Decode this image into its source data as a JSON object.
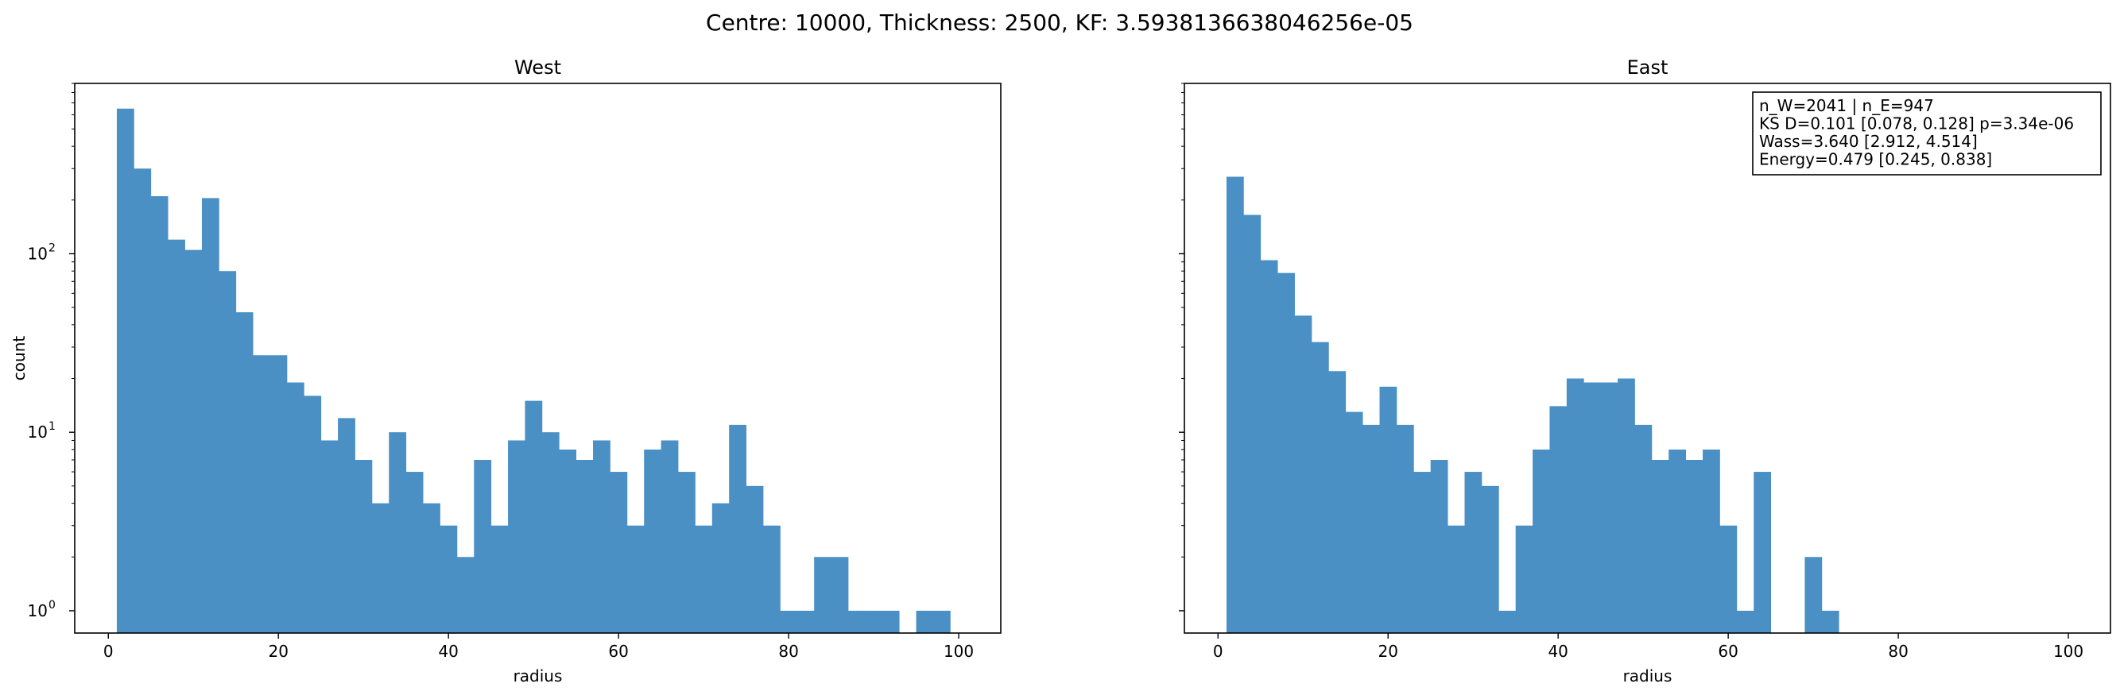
{
  "figure": {
    "suptitle": "Centre: 10000, Thickness: 2500, KF: 3.5938136638046256e-05"
  },
  "chart_data": [
    {
      "type": "histogram",
      "title": "West",
      "xlabel": "radius",
      "ylabel": "count",
      "yscale": "log",
      "xlim": [
        -3.95,
        104.95
      ],
      "ylim": [
        0.75,
        900
      ],
      "x_ticks": [
        0,
        20,
        40,
        60,
        80,
        100
      ],
      "x_tick_labels": [
        "0",
        "20",
        "40",
        "60",
        "80",
        "100"
      ],
      "y_ticks": [
        1,
        10,
        100
      ],
      "y_tick_labels": [
        "10",
        "10",
        "10"
      ],
      "y_tick_exponents": [
        "0",
        "1",
        "2"
      ],
      "bin_edges": [
        1.0,
        3.0,
        5.0,
        7.0,
        9.0,
        11.0,
        13.0,
        15.0,
        17.0,
        19.0,
        21.0,
        23.0,
        25.0,
        27.0,
        29.0,
        31.0,
        33.0,
        35.0,
        37.0,
        39.0,
        41.0,
        43.0,
        45.0,
        47.0,
        49.0,
        51.0,
        53.0,
        55.0,
        57.0,
        59.0,
        61.0,
        63.0,
        65.0,
        67.0,
        69.0,
        71.0,
        73.0,
        75.0,
        77.0,
        79.0,
        81.0,
        83.0,
        85.0,
        87.0,
        89.0,
        91.0,
        93.0,
        95.0,
        97.0,
        99.0,
        101.0
      ],
      "counts": [
        650,
        300,
        210,
        120,
        105,
        205,
        80,
        47,
        27,
        27,
        19,
        16,
        9,
        12,
        7,
        4,
        10,
        6,
        4,
        3,
        2,
        7,
        3,
        9,
        15,
        10,
        8,
        7,
        9,
        6,
        3,
        8,
        9,
        6,
        3,
        4,
        11,
        5,
        3,
        1,
        1,
        2,
        2,
        1,
        1,
        1,
        0,
        1,
        1,
        0
      ],
      "color": "#4a90c4",
      "grid": false
    },
    {
      "type": "histogram",
      "title": "East",
      "xlabel": "radius",
      "ylabel": "",
      "yscale": "log",
      "xlim": [
        -3.95,
        104.95
      ],
      "ylim": [
        0.75,
        900
      ],
      "x_ticks": [
        0,
        20,
        40,
        60,
        80,
        100
      ],
      "x_tick_labels": [
        "0",
        "20",
        "40",
        "60",
        "80",
        "100"
      ],
      "y_tick_labels_visible": false,
      "bin_edges": [
        1.0,
        3.0,
        5.0,
        7.0,
        9.0,
        11.0,
        13.0,
        15.0,
        17.0,
        19.0,
        21.0,
        23.0,
        25.0,
        27.0,
        29.0,
        31.0,
        33.0,
        35.0,
        37.0,
        39.0,
        41.0,
        43.0,
        45.0,
        47.0,
        49.0,
        51.0,
        53.0,
        55.0,
        57.0,
        59.0,
        61.0,
        63.0,
        65.0,
        67.0,
        69.0,
        71.0,
        73.0,
        75.0,
        77.0,
        79.0,
        81.0,
        83.0,
        85.0,
        87.0,
        89.0,
        91.0,
        93.0,
        95.0,
        97.0,
        99.0,
        101.0
      ],
      "counts": [
        270,
        165,
        92,
        78,
        45,
        32,
        22,
        13,
        11,
        18,
        11,
        6,
        7,
        3,
        6,
        5,
        1,
        3,
        8,
        14,
        20,
        19,
        19,
        20,
        11,
        7,
        8,
        7,
        8,
        3,
        1,
        6,
        0,
        0,
        2,
        1,
        0,
        0,
        0,
        0,
        0,
        0,
        0,
        0,
        0,
        0,
        0,
        0,
        0,
        0
      ],
      "color": "#4a90c4",
      "grid": false,
      "stats_box": [
        "n_W=2041 | n_E=947",
        "KS D=0.101 [0.078, 0.128]  p=3.34e-06",
        "Wass=3.640 [2.912, 4.514]",
        "Energy=0.479 [0.245, 0.838]"
      ],
      "stats_box_location": "top-right"
    }
  ]
}
